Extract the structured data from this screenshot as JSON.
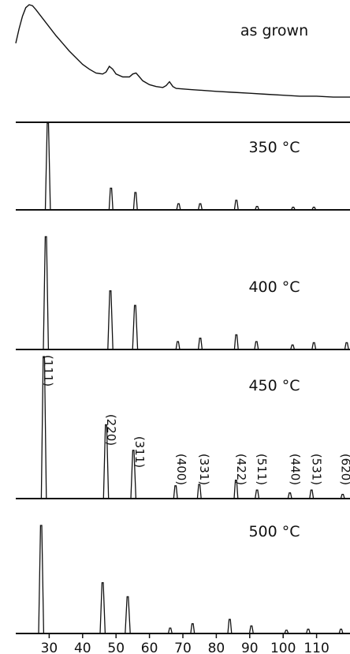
{
  "chart_data": {
    "type": "line",
    "xlim": [
      20,
      120
    ],
    "x_ticks": [
      30,
      40,
      50,
      60,
      70,
      80,
      90,
      100,
      110
    ],
    "grid": false,
    "legend": "none",
    "line_color": "#111111",
    "peak_labels": [
      {
        "text": "(111)",
        "x": 28.5
      },
      {
        "text": "(220)",
        "x": 47.3
      },
      {
        "text": "(311)",
        "x": 55.9
      },
      {
        "text": "(400)",
        "x": 68.3
      },
      {
        "text": "(331)",
        "x": 75.2
      },
      {
        "text": "(422)",
        "x": 86.3
      },
      {
        "text": "(511)",
        "x": 92.4
      },
      {
        "text": "(440)",
        "x": 102.4
      },
      {
        "text": "(531)",
        "x": 108.8
      },
      {
        "text": "(620)",
        "x": 117.5
      }
    ],
    "panels": [
      {
        "label": "as grown",
        "kind": "amorphous",
        "points": [
          [
            20,
            0.6
          ],
          [
            21,
            0.75
          ],
          [
            22,
            0.88
          ],
          [
            23,
            0.97
          ],
          [
            24,
            1.0
          ],
          [
            25,
            0.99
          ],
          [
            26,
            0.95
          ],
          [
            28,
            0.86
          ],
          [
            30,
            0.77
          ],
          [
            32,
            0.68
          ],
          [
            34,
            0.6
          ],
          [
            36,
            0.52
          ],
          [
            38,
            0.45
          ],
          [
            40,
            0.38
          ],
          [
            42,
            0.33
          ],
          [
            44,
            0.29
          ],
          [
            46,
            0.28
          ],
          [
            47,
            0.3
          ],
          [
            48,
            0.36
          ],
          [
            49,
            0.33
          ],
          [
            50,
            0.28
          ],
          [
            52,
            0.25
          ],
          [
            54,
            0.25
          ],
          [
            55,
            0.28
          ],
          [
            56,
            0.29
          ],
          [
            57,
            0.25
          ],
          [
            58,
            0.21
          ],
          [
            60,
            0.17
          ],
          [
            62,
            0.15
          ],
          [
            64,
            0.14
          ],
          [
            65,
            0.16
          ],
          [
            66,
            0.2
          ],
          [
            67,
            0.15
          ],
          [
            68,
            0.13
          ],
          [
            72,
            0.12
          ],
          [
            76,
            0.11
          ],
          [
            80,
            0.1
          ],
          [
            85,
            0.09
          ],
          [
            90,
            0.08
          ],
          [
            95,
            0.07
          ],
          [
            100,
            0.06
          ],
          [
            105,
            0.05
          ],
          [
            110,
            0.05
          ],
          [
            115,
            0.04
          ],
          [
            120,
            0.04
          ]
        ]
      },
      {
        "label": "350 °C",
        "kind": "peaks",
        "peaks": [
          [
            29.6,
            1.0
          ],
          [
            48.5,
            0.25
          ],
          [
            55.8,
            0.2
          ],
          [
            68.7,
            0.07
          ],
          [
            75.2,
            0.07
          ],
          [
            86.0,
            0.11
          ],
          [
            92.2,
            0.04
          ],
          [
            103.0,
            0.03
          ],
          [
            109.2,
            0.03
          ]
        ]
      },
      {
        "label": "400 °C",
        "kind": "peaks",
        "peaks": [
          [
            29.0,
            1.0
          ],
          [
            48.3,
            0.52
          ],
          [
            55.7,
            0.39
          ],
          [
            68.5,
            0.07
          ],
          [
            75.2,
            0.1
          ],
          [
            86.0,
            0.13
          ],
          [
            92.0,
            0.07
          ],
          [
            102.8,
            0.04
          ],
          [
            109.2,
            0.06
          ],
          [
            119.0,
            0.06
          ]
        ]
      },
      {
        "label": "450 °C",
        "kind": "peaks",
        "peaks": [
          [
            28.4,
            1.0
          ],
          [
            47.0,
            0.52
          ],
          [
            55.2,
            0.34
          ],
          [
            67.8,
            0.09
          ],
          [
            74.9,
            0.1
          ],
          [
            85.9,
            0.13
          ],
          [
            92.2,
            0.06
          ],
          [
            102.0,
            0.04
          ],
          [
            108.5,
            0.06
          ],
          [
            117.8,
            0.03
          ]
        ]
      },
      {
        "label": "500 °C",
        "kind": "peaks",
        "peaks": [
          [
            27.6,
            1.0
          ],
          [
            46.0,
            0.47
          ],
          [
            53.5,
            0.34
          ],
          [
            66.2,
            0.05
          ],
          [
            72.9,
            0.09
          ],
          [
            84.0,
            0.13
          ],
          [
            90.5,
            0.07
          ],
          [
            101.0,
            0.03
          ],
          [
            107.5,
            0.04
          ],
          [
            117.3,
            0.04
          ]
        ]
      }
    ]
  }
}
